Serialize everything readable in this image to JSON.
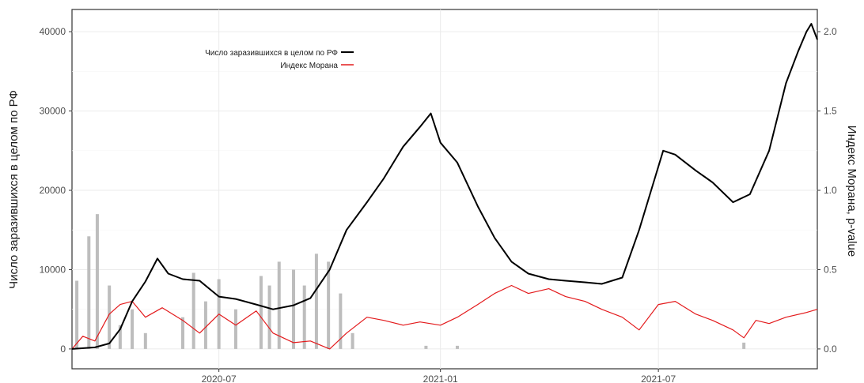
{
  "chart_data": {
    "type": "line",
    "title": "",
    "xlabel": "",
    "ylabel": "Число заразившихся в целом по РФ",
    "y2label": "Индекс Морана, p-value",
    "x_ticks": [
      "2020-07",
      "2021-01",
      "2021-07"
    ],
    "x_range": [
      "2020-03-01",
      "2021-11-10"
    ],
    "ylim": [
      -2500,
      42800
    ],
    "y_ticks": [
      0,
      10000,
      20000,
      30000,
      40000
    ],
    "y2lim": [
      -0.125,
      2.14
    ],
    "y2_ticks": [
      "0.0",
      "0.5",
      "1.0",
      "1.5",
      "2.0"
    ],
    "grid": true,
    "legend_position": "top-left",
    "colors": {
      "cases": "#000000",
      "moran": "#e31a1c",
      "pvalue": "#bdbdbd"
    },
    "series": [
      {
        "name": "Число заразившихся в целом по РФ",
        "axis": "left",
        "values": [
          [
            "2020-03-01",
            0
          ],
          [
            "2020-03-20",
            200
          ],
          [
            "2020-04-01",
            700
          ],
          [
            "2020-04-10",
            2500
          ],
          [
            "2020-04-20",
            6000
          ],
          [
            "2020-05-01",
            8500
          ],
          [
            "2020-05-11",
            11400
          ],
          [
            "2020-05-20",
            9500
          ],
          [
            "2020-06-01",
            8800
          ],
          [
            "2020-06-15",
            8600
          ],
          [
            "2020-07-01",
            6600
          ],
          [
            "2020-07-15",
            6300
          ],
          [
            "2020-08-01",
            5600
          ],
          [
            "2020-08-15",
            5000
          ],
          [
            "2020-09-01",
            5500
          ],
          [
            "2020-09-15",
            6400
          ],
          [
            "2020-10-01",
            10000
          ],
          [
            "2020-10-15",
            15000
          ],
          [
            "2020-11-01",
            18500
          ],
          [
            "2020-11-15",
            21500
          ],
          [
            "2020-12-01",
            25500
          ],
          [
            "2020-12-15",
            28000
          ],
          [
            "2020-12-24",
            29700
          ],
          [
            "2021-01-01",
            26000
          ],
          [
            "2021-01-15",
            23500
          ],
          [
            "2021-02-01",
            18000
          ],
          [
            "2021-02-15",
            14000
          ],
          [
            "2021-03-01",
            11000
          ],
          [
            "2021-03-15",
            9500
          ],
          [
            "2021-04-01",
            8800
          ],
          [
            "2021-04-15",
            8600
          ],
          [
            "2021-05-01",
            8400
          ],
          [
            "2021-05-15",
            8200
          ],
          [
            "2021-06-01",
            9000
          ],
          [
            "2021-06-15",
            15000
          ],
          [
            "2021-06-25",
            20000
          ],
          [
            "2021-07-05",
            25000
          ],
          [
            "2021-07-15",
            24500
          ],
          [
            "2021-08-01",
            22500
          ],
          [
            "2021-08-15",
            21000
          ],
          [
            "2021-09-01",
            18500
          ],
          [
            "2021-09-15",
            19500
          ],
          [
            "2021-10-01",
            25000
          ],
          [
            "2021-10-15",
            33500
          ],
          [
            "2021-10-25",
            37500
          ],
          [
            "2021-11-01",
            40000
          ],
          [
            "2021-11-05",
            41000
          ],
          [
            "2021-11-10",
            39000
          ]
        ]
      },
      {
        "name": "Индекс Морана",
        "axis": "right",
        "values": [
          [
            "2020-03-01",
            0.0
          ],
          [
            "2020-03-10",
            0.08
          ],
          [
            "2020-03-20",
            0.05
          ],
          [
            "2020-04-01",
            0.22
          ],
          [
            "2020-04-10",
            0.28
          ],
          [
            "2020-04-20",
            0.3
          ],
          [
            "2020-05-01",
            0.2
          ],
          [
            "2020-05-15",
            0.26
          ],
          [
            "2020-06-01",
            0.18
          ],
          [
            "2020-06-15",
            0.1
          ],
          [
            "2020-07-01",
            0.22
          ],
          [
            "2020-07-15",
            0.15
          ],
          [
            "2020-08-01",
            0.24
          ],
          [
            "2020-08-15",
            0.1
          ],
          [
            "2020-09-01",
            0.04
          ],
          [
            "2020-09-15",
            0.05
          ],
          [
            "2020-10-01",
            0.0
          ],
          [
            "2020-10-15",
            0.1
          ],
          [
            "2020-11-01",
            0.2
          ],
          [
            "2020-11-15",
            0.18
          ],
          [
            "2020-12-01",
            0.15
          ],
          [
            "2020-12-15",
            0.17
          ],
          [
            "2021-01-01",
            0.15
          ],
          [
            "2021-01-15",
            0.2
          ],
          [
            "2021-02-01",
            0.28
          ],
          [
            "2021-02-15",
            0.35
          ],
          [
            "2021-03-01",
            0.4
          ],
          [
            "2021-03-15",
            0.35
          ],
          [
            "2021-04-01",
            0.38
          ],
          [
            "2021-04-15",
            0.33
          ],
          [
            "2021-05-01",
            0.3
          ],
          [
            "2021-05-15",
            0.25
          ],
          [
            "2021-06-01",
            0.2
          ],
          [
            "2021-06-15",
            0.12
          ],
          [
            "2021-07-01",
            0.28
          ],
          [
            "2021-07-15",
            0.3
          ],
          [
            "2021-08-01",
            0.22
          ],
          [
            "2021-08-15",
            0.18
          ],
          [
            "2021-09-01",
            0.12
          ],
          [
            "2021-09-10",
            0.07
          ],
          [
            "2021-09-20",
            0.18
          ],
          [
            "2021-10-01",
            0.16
          ],
          [
            "2021-10-15",
            0.2
          ],
          [
            "2021-11-01",
            0.23
          ],
          [
            "2021-11-10",
            0.25
          ]
        ]
      },
      {
        "axis": "right",
        "style": "bars",
        "values": [
          [
            "2020-03-05",
            0.43
          ],
          [
            "2020-03-15",
            0.71
          ],
          [
            "2020-03-22",
            0.85
          ],
          [
            "2020-04-01",
            0.4
          ],
          [
            "2020-04-10",
            0.15
          ],
          [
            "2020-04-20",
            0.25
          ],
          [
            "2020-05-01",
            0.1
          ],
          [
            "2020-06-01",
            0.2
          ],
          [
            "2020-06-10",
            0.48
          ],
          [
            "2020-06-20",
            0.3
          ],
          [
            "2020-07-01",
            0.44
          ],
          [
            "2020-07-15",
            0.25
          ],
          [
            "2020-08-05",
            0.46
          ],
          [
            "2020-08-12",
            0.4
          ],
          [
            "2020-08-20",
            0.55
          ],
          [
            "2020-09-01",
            0.5
          ],
          [
            "2020-09-10",
            0.4
          ],
          [
            "2020-09-20",
            0.6
          ],
          [
            "2020-09-30",
            0.55
          ],
          [
            "2020-10-10",
            0.35
          ],
          [
            "2020-10-20",
            0.1
          ],
          [
            "2020-12-20",
            0.02
          ],
          [
            "2021-01-15",
            0.02
          ],
          [
            "2021-09-10",
            0.04
          ]
        ]
      }
    ]
  }
}
